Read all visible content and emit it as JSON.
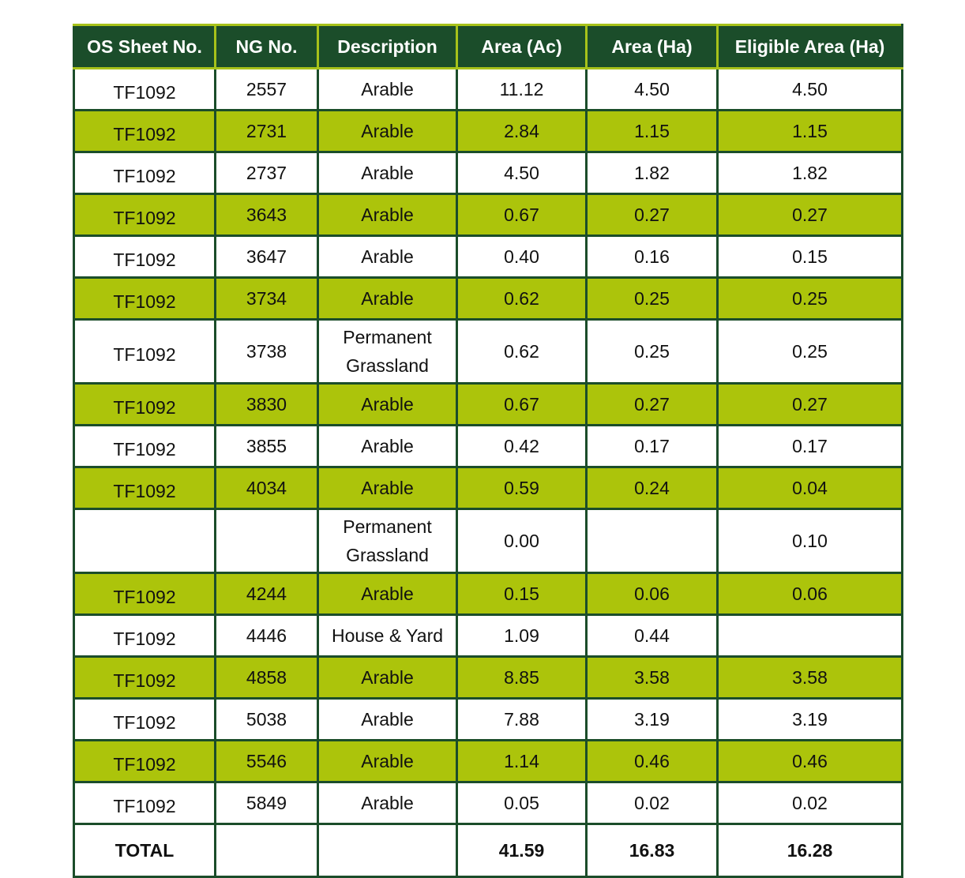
{
  "table": {
    "columns": [
      "OS Sheet No.",
      "NG No.",
      "Description",
      "Area (Ac)",
      "Area (Ha)",
      "Eligible Area (Ha)"
    ],
    "rows": [
      {
        "sheet": "TF1092",
        "ng": "2557",
        "desc": [
          "Arable"
        ],
        "area_ac": "11.12",
        "area_ha": "4.50",
        "eligible_ha": "4.50"
      },
      {
        "sheet": "TF1092",
        "ng": "2731",
        "desc": [
          "Arable"
        ],
        "area_ac": "2.84",
        "area_ha": "1.15",
        "eligible_ha": "1.15"
      },
      {
        "sheet": "TF1092",
        "ng": "2737",
        "desc": [
          "Arable"
        ],
        "area_ac": "4.50",
        "area_ha": "1.82",
        "eligible_ha": "1.82"
      },
      {
        "sheet": "TF1092",
        "ng": "3643",
        "desc": [
          "Arable"
        ],
        "area_ac": "0.67",
        "area_ha": "0.27",
        "eligible_ha": "0.27"
      },
      {
        "sheet": "TF1092",
        "ng": "3647",
        "desc": [
          "Arable"
        ],
        "area_ac": "0.40",
        "area_ha": "0.16",
        "eligible_ha": "0.15"
      },
      {
        "sheet": "TF1092",
        "ng": "3734",
        "desc": [
          "Arable"
        ],
        "area_ac": "0.62",
        "area_ha": "0.25",
        "eligible_ha": "0.25"
      },
      {
        "sheet": "TF1092",
        "ng": "3738",
        "desc": [
          "Permanent",
          "Grassland"
        ],
        "area_ac": "0.62",
        "area_ha": "0.25",
        "eligible_ha": "0.25"
      },
      {
        "sheet": "TF1092",
        "ng": "3830",
        "desc": [
          "Arable"
        ],
        "area_ac": "0.67",
        "area_ha": "0.27",
        "eligible_ha": "0.27"
      },
      {
        "sheet": "TF1092",
        "ng": "3855",
        "desc": [
          "Arable"
        ],
        "area_ac": "0.42",
        "area_ha": "0.17",
        "eligible_ha": "0.17"
      },
      {
        "sheet": "TF1092",
        "ng": "4034",
        "desc": [
          "Arable"
        ],
        "area_ac": "0.59",
        "area_ha": "0.24",
        "eligible_ha": "0.04"
      },
      {
        "sheet": "",
        "ng": "",
        "desc": [
          "Permanent",
          "Grassland"
        ],
        "area_ac": "0.00",
        "area_ha": "",
        "eligible_ha": "0.10"
      },
      {
        "sheet": "TF1092",
        "ng": "4244",
        "desc": [
          "Arable"
        ],
        "area_ac": "0.15",
        "area_ha": "0.06",
        "eligible_ha": "0.06"
      },
      {
        "sheet": "TF1092",
        "ng": "4446",
        "desc": [
          "House & Yard"
        ],
        "area_ac": "1.09",
        "area_ha": "0.44",
        "eligible_ha": ""
      },
      {
        "sheet": "TF1092",
        "ng": "4858",
        "desc": [
          "Arable"
        ],
        "area_ac": "8.85",
        "area_ha": "3.58",
        "eligible_ha": "3.58"
      },
      {
        "sheet": "TF1092",
        "ng": "5038",
        "desc": [
          "Arable"
        ],
        "area_ac": "7.88",
        "area_ha": "3.19",
        "eligible_ha": "3.19"
      },
      {
        "sheet": "TF1092",
        "ng": "5546",
        "desc": [
          "Arable"
        ],
        "area_ac": "1.14",
        "area_ha": "0.46",
        "eligible_ha": "0.46"
      },
      {
        "sheet": "TF1092",
        "ng": "5849",
        "desc": [
          "Arable"
        ],
        "area_ac": "0.05",
        "area_ha": "0.02",
        "eligible_ha": "0.02"
      }
    ],
    "total": {
      "label": "TOTAL",
      "ng": "",
      "desc": "",
      "area_ac": "41.59",
      "area_ha": "16.83",
      "eligible_ha": "16.28"
    }
  },
  "colors": {
    "header_bg": "#1b4d2a",
    "border": "#1b4d2a",
    "header_divider": "#a7c21a",
    "stripe_green": "#acc40b",
    "stripe_white": "#ffffff"
  }
}
